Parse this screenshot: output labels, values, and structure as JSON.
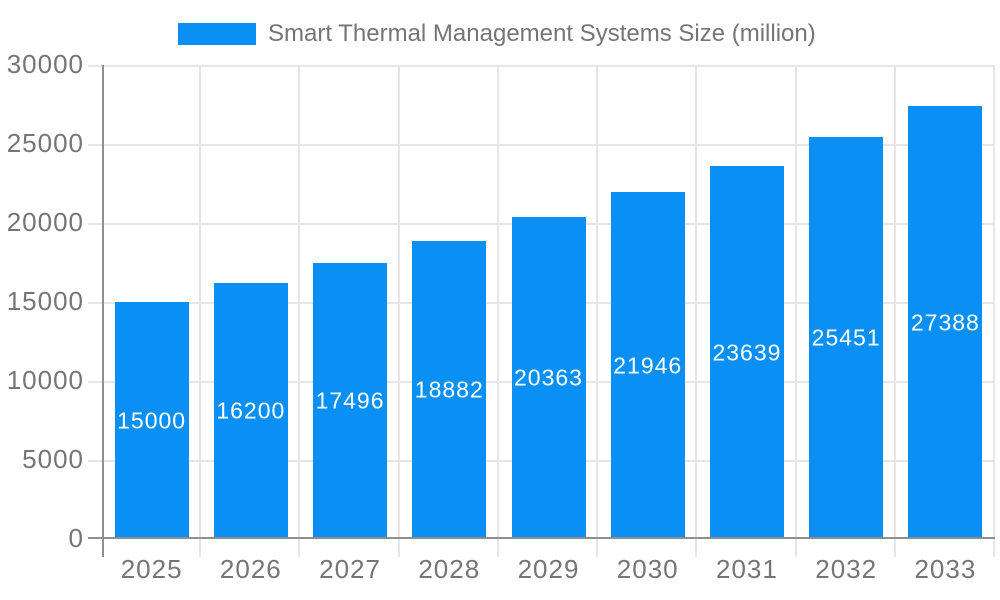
{
  "chart_data": {
    "type": "bar",
    "title": "Smart Thermal Management Systems Size (million)",
    "categories": [
      "2025",
      "2026",
      "2027",
      "2028",
      "2029",
      "2030",
      "2031",
      "2032",
      "2033"
    ],
    "values": [
      15000,
      16200,
      17496,
      18882,
      20363,
      21946,
      23639,
      25451,
      27388
    ],
    "series": [
      {
        "name": "Smart Thermal Management Systems Size (million)",
        "values": [
          15000,
          16200,
          17496,
          18882,
          20363,
          21946,
          23639,
          25451,
          27388
        ]
      }
    ],
    "xlabel": "",
    "ylabel": "",
    "ylim": [
      0,
      30000
    ],
    "y_ticks": [
      0,
      5000,
      10000,
      15000,
      20000,
      25000,
      30000
    ],
    "grid": true,
    "legend_position": "top",
    "value_labels_inside_bars": true,
    "colors": {
      "bar": "#0a90f5",
      "bar_value_text": "#ffffff",
      "axis_text": "#757575",
      "grid_line": "#e6e6e6",
      "axis_line": "#8f8f8f",
      "background": "#ffffff"
    }
  }
}
